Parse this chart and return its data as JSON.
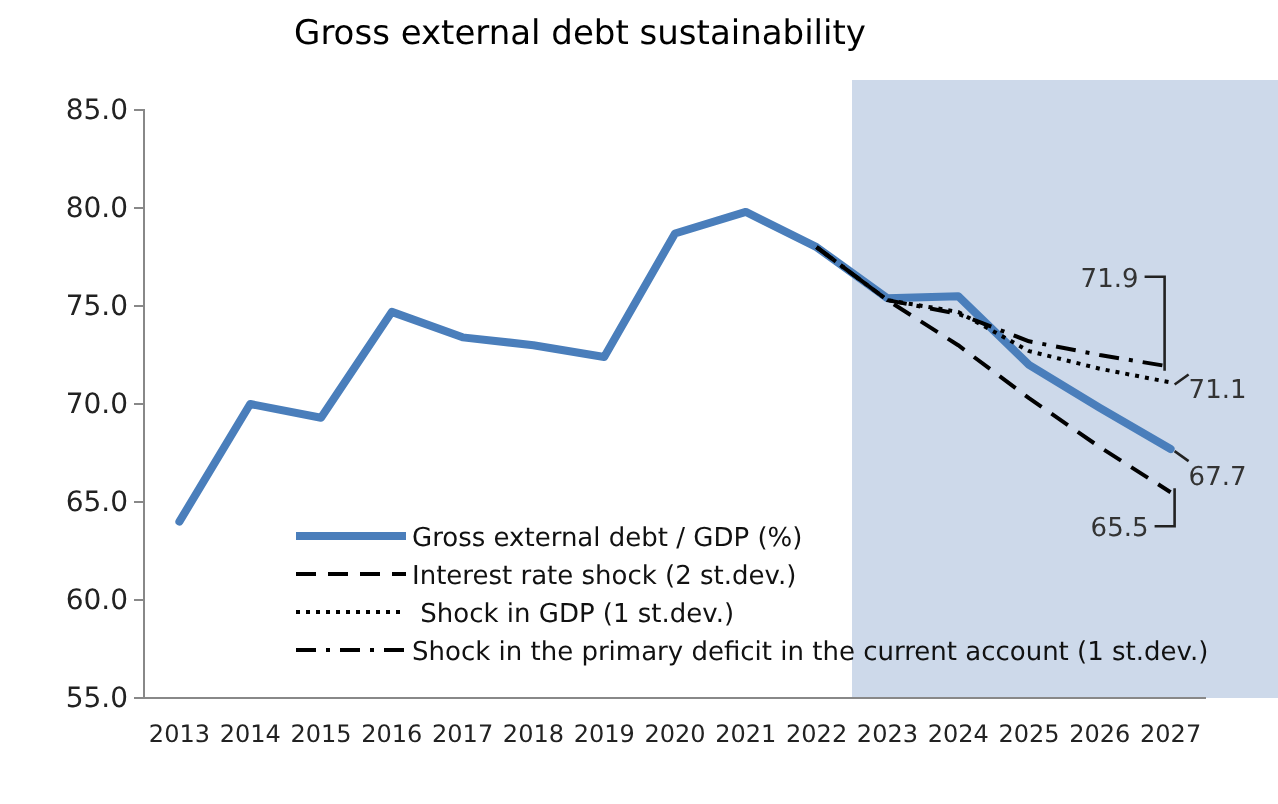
{
  "chart_data": {
    "type": "line",
    "title": "Gross external debt sustainability",
    "categories": [
      "2013",
      "2014",
      "2015",
      "2016",
      "2017",
      "2018",
      "2019",
      "2020",
      "2021",
      "2022",
      "2023",
      "2024",
      "2025",
      "2026",
      "2027"
    ],
    "series": [
      {
        "name": "Gross external debt / GDP (%)",
        "color": "#4a7ebb",
        "line_style": "solid",
        "values": [
          64.0,
          70.0,
          69.3,
          74.7,
          73.4,
          73.0,
          72.4,
          78.7,
          79.8,
          78.0,
          75.4,
          75.5,
          72.0,
          69.8,
          67.7
        ]
      },
      {
        "name": "Interest rate shock (2 st.dev.)",
        "color": "#000000",
        "line_style": "dashed",
        "values": [
          null,
          null,
          null,
          null,
          null,
          null,
          null,
          null,
          null,
          78.0,
          75.3,
          73.0,
          70.3,
          67.8,
          65.5
        ]
      },
      {
        "name": " Shock in GDP (1 st.dev.)",
        "color": "#000000",
        "line_style": "dotted",
        "values": [
          null,
          null,
          null,
          null,
          null,
          null,
          null,
          null,
          null,
          78.0,
          75.3,
          74.7,
          72.7,
          71.8,
          71.1
        ]
      },
      {
        "name": "Shock in the primary deficit in the current account (1 st.dev.)",
        "color": "#000000",
        "line_style": "dashdot",
        "values": [
          null,
          null,
          null,
          null,
          null,
          null,
          null,
          null,
          null,
          78.0,
          75.3,
          74.6,
          73.2,
          72.5,
          71.9
        ]
      }
    ],
    "ylim": [
      55,
      85
    ],
    "yticks": [
      {
        "value": 55,
        "label": "55.0"
      },
      {
        "value": 60,
        "label": "60.0"
      },
      {
        "value": 65,
        "label": "65.0"
      },
      {
        "value": 70,
        "label": "70.0"
      },
      {
        "value": 75,
        "label": "75.0"
      },
      {
        "value": 80,
        "label": "80.0"
      },
      {
        "value": 85,
        "label": "85.0"
      }
    ],
    "bands": [
      {
        "axis": "x",
        "from": "2023",
        "to": "2027",
        "color": "#cdd9ea"
      }
    ],
    "annotations": [
      {
        "text": "71.9",
        "x": "2027",
        "y": 71.9
      },
      {
        "text": "71.1",
        "x": "2027",
        "y": 71.1
      },
      {
        "text": "67.7",
        "x": "2027",
        "y": 67.7
      },
      {
        "text": "65.5",
        "x": "2027",
        "y": 65.5
      }
    ],
    "legend": "bottom",
    "grid": false
  }
}
